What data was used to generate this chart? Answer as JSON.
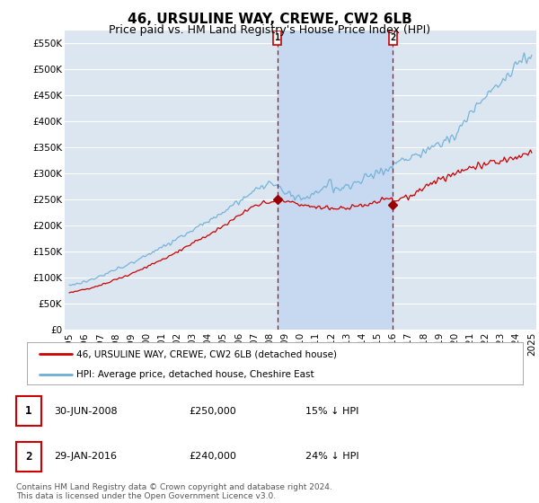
{
  "title": "46, URSULINE WAY, CREWE, CW2 6LB",
  "subtitle": "Price paid vs. HM Land Registry's House Price Index (HPI)",
  "ylim": [
    0,
    575000
  ],
  "yticks": [
    0,
    50000,
    100000,
    150000,
    200000,
    250000,
    300000,
    350000,
    400000,
    450000,
    500000,
    550000
  ],
  "ytick_labels": [
    "£0",
    "£50K",
    "£100K",
    "£150K",
    "£200K",
    "£250K",
    "£300K",
    "£350K",
    "£400K",
    "£450K",
    "£500K",
    "£550K"
  ],
  "background_color": "#ffffff",
  "plot_bg_color": "#dce6f1",
  "grid_color": "#ffffff",
  "hpi_color": "#6baed6",
  "price_color": "#cc0000",
  "sale_marker_color": "#990000",
  "sale_vline_color": "#cc0000",
  "shade_color": "#c6d9f0",
  "legend_entries": [
    "46, URSULINE WAY, CREWE, CW2 6LB (detached house)",
    "HPI: Average price, detached house, Cheshire East"
  ],
  "annotation1_date": "30-JUN-2008",
  "annotation1_price": "£250,000",
  "annotation1_hpi": "15% ↓ HPI",
  "annotation2_date": "29-JAN-2016",
  "annotation2_price": "£240,000",
  "annotation2_hpi": "24% ↓ HPI",
  "footer": "Contains HM Land Registry data © Crown copyright and database right 2024.\nThis data is licensed under the Open Government Licence v3.0.",
  "title_fontsize": 11,
  "subtitle_fontsize": 9,
  "tick_fontsize": 7.5,
  "years": [
    "1995",
    "1996",
    "1997",
    "1998",
    "1999",
    "2000",
    "2001",
    "2002",
    "2003",
    "2004",
    "2005",
    "2006",
    "2007",
    "2008",
    "2009",
    "2010",
    "2011",
    "2012",
    "2013",
    "2014",
    "2015",
    "2016",
    "2017",
    "2018",
    "2019",
    "2020",
    "2021",
    "2022",
    "2023",
    "2024",
    "2025"
  ]
}
